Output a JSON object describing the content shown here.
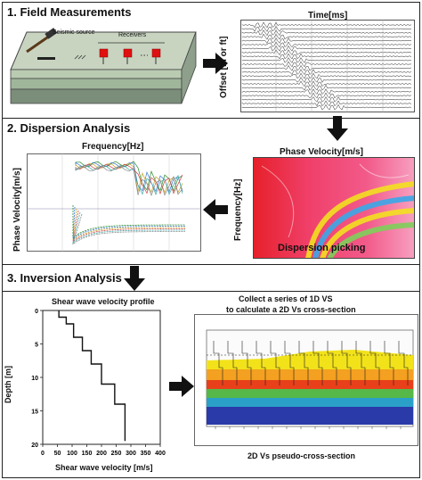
{
  "sections": [
    {
      "title": "1. Field Measurements"
    },
    {
      "title": "2. Dispersion Analysis"
    },
    {
      "title": "3. Inversion Analysis"
    }
  ],
  "field": {
    "seismic_source_label": "Seismic source",
    "receivers_label": "Receivers",
    "time_label": "Time[ms]",
    "offset_label": "Offset [m or ft]"
  },
  "dispersion": {
    "frequency_label": "Frequency[Hz]",
    "phase_velocity_label": "Phase Velocity[m/s]",
    "picking_label": "Dispersion picking"
  },
  "inversion": {
    "profile_title": "Shear wave velocity profile",
    "xlabel": "Shear wave velocity [m/s]",
    "ylabel": "Depth [m]",
    "collect_line1": "Collect a series of 1D VS",
    "collect_line2": "to calculate a 2D Vs cross-section",
    "cross_section_caption": "2D Vs pseudo-cross-section"
  },
  "chart_data": {
    "type": "line",
    "title": "Shear wave velocity profile",
    "xlabel": "Shear wave velocity [m/s]",
    "ylabel": "Depth [m]",
    "xlim": [
      0,
      400
    ],
    "ylim": [
      0,
      20
    ],
    "y_inverted": true,
    "xticks": [
      0,
      50,
      100,
      150,
      200,
      250,
      300,
      350,
      400
    ],
    "yticks": [
      0,
      5,
      10,
      15,
      20
    ],
    "step_profile": [
      {
        "vs": 55,
        "top": 0,
        "bottom": 1
      },
      {
        "vs": 80,
        "top": 1,
        "bottom": 2
      },
      {
        "vs": 105,
        "top": 2,
        "bottom": 4
      },
      {
        "vs": 135,
        "top": 4,
        "bottom": 6
      },
      {
        "vs": 165,
        "top": 6,
        "bottom": 8
      },
      {
        "vs": 200,
        "top": 8,
        "bottom": 11
      },
      {
        "vs": 245,
        "top": 11,
        "bottom": 14
      },
      {
        "vs": 280,
        "top": 14,
        "bottom": 19.5
      }
    ],
    "grid": false
  }
}
